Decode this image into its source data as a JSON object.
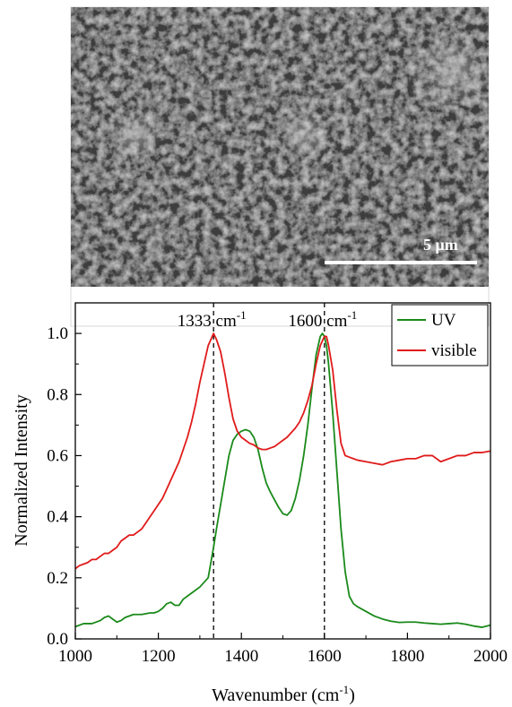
{
  "image_panel": {
    "scale_bar_label": "5 μm"
  },
  "chart_data": {
    "type": "line",
    "xlabel": "Wavenumber (cm",
    "xlabel_sup": "-1",
    "xlabel_end": ")",
    "ylabel": "Normalized Intensity",
    "xlim": [
      1000,
      2000
    ],
    "ylim": [
      0.0,
      1.1
    ],
    "xticks": [
      1000,
      1200,
      1400,
      1600,
      1800,
      2000
    ],
    "yticks": [
      0.0,
      0.2,
      0.4,
      0.6,
      0.8,
      1.0
    ],
    "ytick_labels": [
      "0.0",
      "0.2",
      "0.4",
      "0.6",
      "0.8",
      "1.0"
    ],
    "legend_position": "top-right",
    "annotations": [
      {
        "x": 1333,
        "text": "1333 cm",
        "sup": "-1"
      },
      {
        "x": 1600,
        "text": "1600 cm",
        "sup": "-1"
      }
    ],
    "series": [
      {
        "name": "UV",
        "color": "#1a8a1a",
        "x": [
          1000,
          1020,
          1040,
          1060,
          1070,
          1080,
          1090,
          1100,
          1110,
          1120,
          1140,
          1160,
          1180,
          1190,
          1200,
          1210,
          1220,
          1230,
          1240,
          1250,
          1260,
          1280,
          1300,
          1320,
          1333,
          1340,
          1350,
          1360,
          1370,
          1380,
          1390,
          1400,
          1410,
          1420,
          1430,
          1440,
          1450,
          1460,
          1470,
          1480,
          1490,
          1500,
          1510,
          1520,
          1530,
          1540,
          1550,
          1560,
          1570,
          1580,
          1590,
          1595,
          1600,
          1605,
          1610,
          1620,
          1630,
          1640,
          1650,
          1660,
          1670,
          1680,
          1700,
          1720,
          1740,
          1760,
          1780,
          1800,
          1820,
          1840,
          1860,
          1880,
          1900,
          1920,
          1940,
          1960,
          1980,
          2000
        ],
        "y": [
          0.04,
          0.05,
          0.05,
          0.06,
          0.07,
          0.075,
          0.065,
          0.055,
          0.06,
          0.07,
          0.08,
          0.08,
          0.085,
          0.085,
          0.09,
          0.1,
          0.115,
          0.12,
          0.11,
          0.11,
          0.13,
          0.15,
          0.17,
          0.2,
          0.3,
          0.36,
          0.44,
          0.52,
          0.6,
          0.65,
          0.67,
          0.68,
          0.685,
          0.68,
          0.66,
          0.62,
          0.56,
          0.51,
          0.48,
          0.455,
          0.43,
          0.41,
          0.405,
          0.42,
          0.46,
          0.52,
          0.6,
          0.7,
          0.82,
          0.93,
          0.99,
          1.0,
          0.99,
          0.96,
          0.9,
          0.74,
          0.55,
          0.36,
          0.22,
          0.14,
          0.115,
          0.105,
          0.09,
          0.075,
          0.065,
          0.058,
          0.054,
          0.055,
          0.055,
          0.052,
          0.05,
          0.048,
          0.05,
          0.052,
          0.048,
          0.042,
          0.038,
          0.045
        ]
      },
      {
        "name": "visible",
        "color": "#e01b1b",
        "x": [
          1000,
          1010,
          1020,
          1030,
          1040,
          1050,
          1060,
          1070,
          1080,
          1090,
          1100,
          1110,
          1120,
          1130,
          1140,
          1150,
          1160,
          1170,
          1180,
          1190,
          1200,
          1210,
          1220,
          1230,
          1240,
          1250,
          1260,
          1270,
          1280,
          1290,
          1300,
          1310,
          1320,
          1333,
          1340,
          1350,
          1360,
          1370,
          1380,
          1390,
          1400,
          1410,
          1420,
          1430,
          1440,
          1450,
          1460,
          1470,
          1480,
          1490,
          1500,
          1510,
          1520,
          1530,
          1540,
          1550,
          1560,
          1570,
          1580,
          1590,
          1600,
          1605,
          1610,
          1620,
          1630,
          1640,
          1650,
          1660,
          1670,
          1680,
          1700,
          1720,
          1740,
          1760,
          1780,
          1800,
          1820,
          1840,
          1860,
          1880,
          1900,
          1920,
          1940,
          1960,
          1980,
          2000
        ],
        "y": [
          0.23,
          0.24,
          0.245,
          0.25,
          0.26,
          0.26,
          0.27,
          0.28,
          0.28,
          0.29,
          0.3,
          0.32,
          0.33,
          0.34,
          0.34,
          0.35,
          0.36,
          0.38,
          0.4,
          0.42,
          0.44,
          0.46,
          0.49,
          0.52,
          0.55,
          0.58,
          0.62,
          0.66,
          0.71,
          0.77,
          0.84,
          0.9,
          0.96,
          1.0,
          0.98,
          0.94,
          0.87,
          0.79,
          0.72,
          0.68,
          0.66,
          0.65,
          0.64,
          0.635,
          0.625,
          0.62,
          0.62,
          0.625,
          0.63,
          0.64,
          0.65,
          0.66,
          0.675,
          0.69,
          0.71,
          0.74,
          0.78,
          0.83,
          0.9,
          0.96,
          0.99,
          0.99,
          0.96,
          0.88,
          0.75,
          0.64,
          0.6,
          0.595,
          0.59,
          0.585,
          0.58,
          0.575,
          0.57,
          0.58,
          0.585,
          0.59,
          0.59,
          0.6,
          0.6,
          0.58,
          0.59,
          0.6,
          0.6,
          0.61,
          0.61,
          0.615
        ]
      }
    ]
  }
}
